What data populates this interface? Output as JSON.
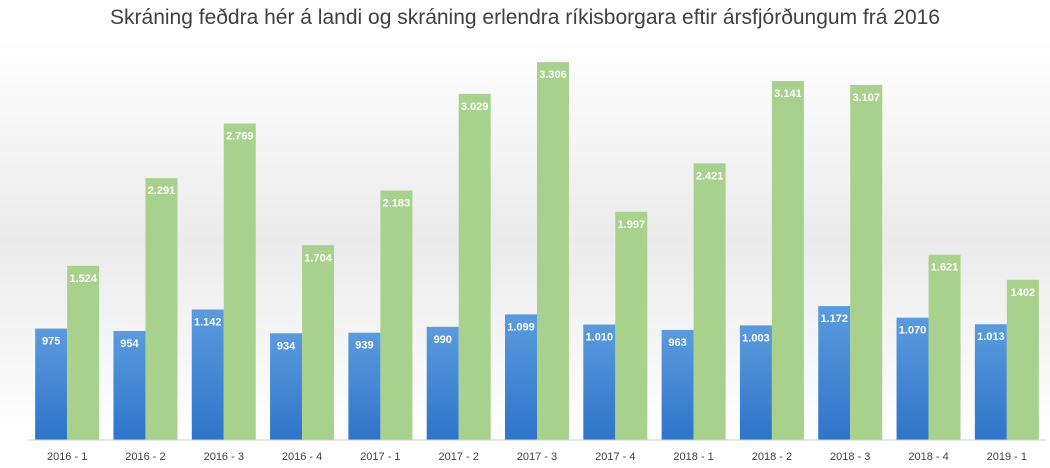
{
  "chart_data": {
    "type": "bar",
    "title": "Skráning feðdra hér á landi og skráning erlendra ríkisborgara eftir ársfjórðungum frá 2016",
    "categories": [
      "2016 - 1",
      "2016 - 2",
      "2016 - 3",
      "2016 - 4",
      "2017 - 1",
      "2017 - 2",
      "2017 - 3",
      "2017 - 4",
      "2018 - 1",
      "2018 - 2",
      "2018 - 3",
      "2018 - 4",
      "2019 - 1"
    ],
    "series": [
      {
        "color": "#3f87d6",
        "values": [
          975,
          954,
          1142,
          934,
          939,
          990,
          1099,
          1010,
          963,
          1003,
          1172,
          1070,
          1013
        ],
        "labels": [
          "975",
          "954",
          "1.142",
          "934",
          "939",
          "990",
          "1.099",
          "1.010",
          "963",
          "1.003",
          "1.172",
          "1.070",
          "1.013"
        ]
      },
      {
        "color": "#a9d18e",
        "values": [
          1524,
          2291,
          2769,
          1704,
          2183,
          3029,
          3306,
          1997,
          2421,
          3141,
          3107,
          1621,
          1402
        ],
        "labels": [
          "1.524",
          "2.291",
          "2.769",
          "1.704",
          "2.183",
          "3.029",
          "3.306",
          "1.997",
          "2.421",
          "3.141",
          "3.107",
          "1.621",
          "1402"
        ]
      }
    ],
    "ylim": [
      0,
      3500
    ],
    "grid": false,
    "legend": "none",
    "xlabel": "",
    "ylabel": ""
  }
}
